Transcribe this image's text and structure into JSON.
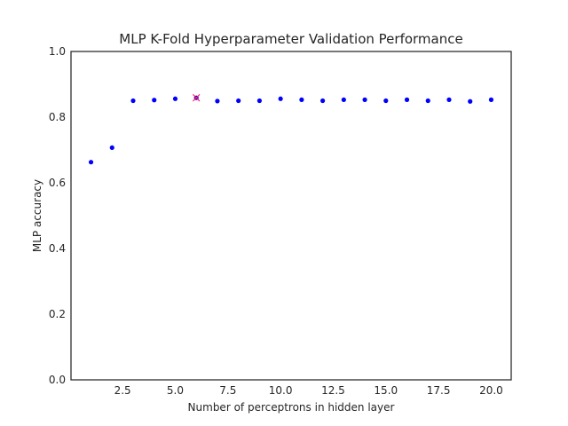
{
  "chart_data": {
    "type": "scatter",
    "title": "MLP K-Fold Hyperparameter Validation Performance",
    "xlabel": "Number of perceptrons in hidden layer",
    "ylabel": "MLP accuracy",
    "xlim": [
      0.05,
      20.95
    ],
    "ylim": [
      0.0,
      1.0
    ],
    "xticks": [
      2.5,
      5.0,
      7.5,
      10.0,
      12.5,
      15.0,
      17.5,
      20.0
    ],
    "xtick_labels": [
      "2.5",
      "5.0",
      "7.5",
      "10.0",
      "12.5",
      "15.0",
      "17.5",
      "20.0"
    ],
    "yticks": [
      0.0,
      0.2,
      0.4,
      0.6,
      0.8,
      1.0
    ],
    "ytick_labels": [
      "0.0",
      "0.2",
      "0.4",
      "0.6",
      "0.8",
      "1.0"
    ],
    "grid": false,
    "series": [
      {
        "color": "#0000ff",
        "marker": "circle",
        "x": [
          1,
          2,
          3,
          4,
          5,
          6,
          7,
          8,
          9,
          10,
          11,
          12,
          13,
          14,
          15,
          16,
          17,
          18,
          19,
          20
        ],
        "y": [
          0.663,
          0.707,
          0.85,
          0.852,
          0.856,
          0.859,
          0.849,
          0.85,
          0.85,
          0.856,
          0.853,
          0.85,
          0.853,
          0.853,
          0.85,
          0.853,
          0.85,
          0.853,
          0.848,
          0.853
        ]
      }
    ],
    "highlight": {
      "x": 6,
      "y": 0.859,
      "color": "#ff1e5a",
      "marker": "x"
    }
  }
}
